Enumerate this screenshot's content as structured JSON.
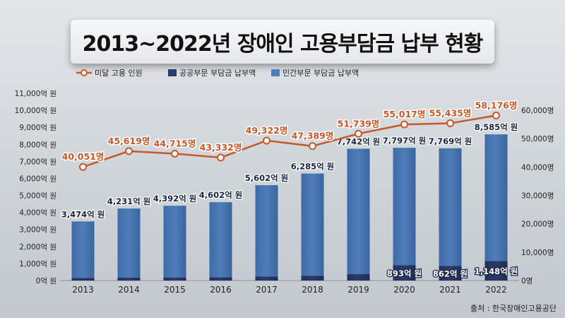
{
  "title": "2013~2022년 장애인 고용부담금 납부 현황",
  "source": "출처 : 한국장애인고용공단",
  "colors": {
    "line": "#c4592a",
    "public": "#2b3a6b",
    "private": "#4f7db8"
  },
  "chart_data": {
    "type": "bar",
    "categories": [
      "2013",
      "2014",
      "2015",
      "2016",
      "2017",
      "2018",
      "2019",
      "2020",
      "2021",
      "2022"
    ],
    "legend": [
      {
        "name": "미달 고용 인원",
        "kind": "line"
      },
      {
        "name": "공공부문 부담금 납부액",
        "kind": "bar"
      },
      {
        "name": "민간부문 부담금 납부액",
        "kind": "bar"
      }
    ],
    "legend_position": "top-left",
    "y_left": {
      "ylim": [
        0,
        11000
      ],
      "ticks": [
        "0억 원",
        "1,000억 원",
        "2,000억 원",
        "3,000억 원",
        "4,000억 원",
        "5,000억 원",
        "6,000억 원",
        "7,000억 원",
        "8,000억 원",
        "9,000억 원",
        "10,000억 원",
        "11,000억 원"
      ]
    },
    "y_right": {
      "ylim": [
        0,
        66000
      ],
      "ticks": [
        "0명",
        "10,000명",
        "20,000명",
        "30,000명",
        "40,000명",
        "50,000명",
        "60,000명"
      ]
    },
    "total_values": [
      3474,
      4231,
      4392,
      4602,
      5602,
      6285,
      7742,
      7797,
      7769,
      8585
    ],
    "total_labels": [
      "3,474억 원",
      "4,231억 원",
      "4,392억 원",
      "4,602억 원",
      "5,602억 원",
      "6,285억 원",
      "7,742억 원",
      "7,797억 원",
      "7,769억 원",
      "8,585억 원"
    ],
    "public_values": [
      150,
      170,
      180,
      190,
      230,
      270,
      380,
      893,
      862,
      1148
    ],
    "public_labels": [
      "",
      "",
      "",
      "",
      "",
      "",
      "",
      "893억 원",
      "862억 원",
      "1,148억 원"
    ],
    "line_values": [
      40051,
      45619,
      44715,
      43332,
      49322,
      47389,
      51739,
      55017,
      55435,
      58176
    ],
    "line_labels": [
      "40,051명",
      "45,619명",
      "44,715명",
      "43,332명",
      "49,322명",
      "47,389명",
      "51,739명",
      "55,017명",
      "55,435명",
      "58,176명"
    ]
  }
}
